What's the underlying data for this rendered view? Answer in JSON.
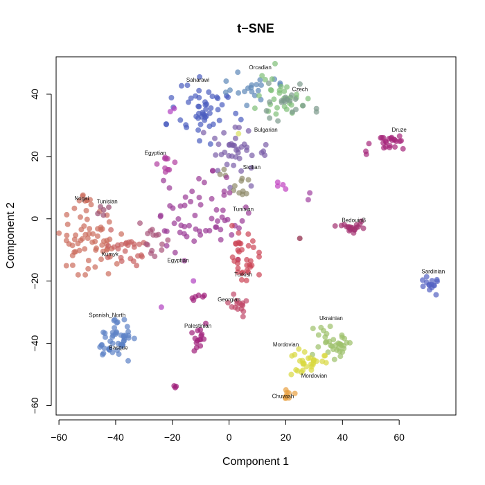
{
  "chart_data": {
    "type": "scatter",
    "title": "t−SNE",
    "xlabel": "Component 1",
    "ylabel": "Component 2",
    "xlim": [
      -61,
      80
    ],
    "ylim": [
      -63,
      52
    ],
    "xticks": [
      -60,
      -40,
      -20,
      0,
      20,
      40,
      60
    ],
    "yticks": [
      -60,
      -40,
      -20,
      0,
      20,
      40
    ],
    "xtick_labels": [
      "−60",
      "−40",
      "−20",
      "0",
      "20",
      "40",
      "60"
    ],
    "ytick_labels": [
      "−60",
      "−40",
      "−20",
      "0",
      "20",
      "40"
    ],
    "grid": false,
    "legend": "none",
    "clusters": [
      {
        "cx": -9,
        "cy": 35,
        "sx": 6,
        "sy": 5,
        "n": 50,
        "color": "#4a5cbf"
      },
      {
        "cx": 7,
        "cy": 42,
        "sx": 5,
        "sy": 3,
        "n": 20,
        "color": "#5d88b8"
      },
      {
        "cx": 18,
        "cy": 41,
        "sx": 5,
        "sy": 4,
        "n": 30,
        "color": "#7fbf78"
      },
      {
        "cx": 22,
        "cy": 38,
        "sx": 4,
        "sy": 3,
        "n": 20,
        "color": "#7c9a8c"
      },
      {
        "cx": 4,
        "cy": 21,
        "sx": 6,
        "sy": 5,
        "n": 40,
        "color": "#7b5ea8"
      },
      {
        "cx": 1,
        "cy": 12,
        "sx": 3,
        "sy": 3,
        "n": 12,
        "color": "#8e8a6a"
      },
      {
        "cx": 56,
        "cy": 24,
        "sx": 4,
        "sy": 1.5,
        "n": 25,
        "color": "#a5267a"
      },
      {
        "cx": -22,
        "cy": 18,
        "sx": 2,
        "sy": 1.5,
        "n": 10,
        "color": "#b03da0"
      },
      {
        "cx": -49,
        "cy": -7,
        "sx": 5,
        "sy": 5,
        "n": 60,
        "color": "#cc6c5c"
      },
      {
        "cx": -51,
        "cy": 5,
        "sx": 1.5,
        "sy": 1.5,
        "n": 8,
        "color": "#cc6c5c"
      },
      {
        "cx": -37,
        "cy": -10,
        "sx": 4,
        "sy": 3,
        "n": 25,
        "color": "#c76060"
      },
      {
        "cx": -28,
        "cy": -8,
        "sx": 3,
        "sy": 3,
        "n": 15,
        "color": "#a8557a"
      },
      {
        "cx": -44,
        "cy": 3,
        "sx": 1.5,
        "sy": 1.5,
        "n": 5,
        "color": "#9a4e70"
      },
      {
        "cx": -10,
        "cy": 0,
        "sx": 8,
        "sy": 7,
        "n": 60,
        "color": "#9a3a96"
      },
      {
        "cx": 4,
        "cy": -11,
        "sx": 3,
        "sy": 4,
        "n": 35,
        "color": "#cc4456"
      },
      {
        "cx": 4,
        "cy": -27,
        "sx": 2,
        "sy": 2,
        "n": 15,
        "color": "#c0486a"
      },
      {
        "cx": 44,
        "cy": -3,
        "sx": 3,
        "sy": 1,
        "n": 20,
        "color": "#a33070"
      },
      {
        "cx": 71,
        "cy": -20,
        "sx": 1.5,
        "sy": 2,
        "n": 15,
        "color": "#5361c2"
      },
      {
        "cx": -40,
        "cy": -39,
        "sx": 3,
        "sy": 3,
        "n": 50,
        "color": "#5d82c6"
      },
      {
        "cx": -11,
        "cy": -38,
        "sx": 1.5,
        "sy": 2,
        "n": 15,
        "color": "#a0207a"
      },
      {
        "cx": 36,
        "cy": -39,
        "sx": 3,
        "sy": 3,
        "n": 35,
        "color": "#9cc06a"
      },
      {
        "cx": 28,
        "cy": -46,
        "sx": 3,
        "sy": 2,
        "n": 30,
        "color": "#d8d840"
      },
      {
        "cx": 21,
        "cy": -56,
        "sx": 1,
        "sy": 1,
        "n": 8,
        "color": "#e8a040"
      },
      {
        "cx": -11,
        "cy": -25,
        "sx": 1.5,
        "sy": 1,
        "n": 6,
        "color": "#a0207a"
      },
      {
        "cx": -19,
        "cy": -54,
        "sx": 0.3,
        "sy": 0.8,
        "n": 3,
        "color": "#a0207a"
      },
      {
        "cx": 18,
        "cy": 11,
        "sx": 2,
        "sy": 1,
        "n": 4,
        "color": "#c040c0"
      },
      {
        "cx": 28,
        "cy": 7,
        "sx": 0.5,
        "sy": 1,
        "n": 2,
        "color": "#a040a0"
      },
      {
        "cx": 3,
        "cy": 28,
        "sx": 0.4,
        "sy": 0.4,
        "n": 1,
        "color": "#d8e060"
      },
      {
        "cx": 25,
        "cy": -6,
        "sx": 0.2,
        "sy": 0.2,
        "n": 1,
        "color": "#8a2040"
      },
      {
        "cx": -24,
        "cy": -28,
        "sx": 0.3,
        "sy": 0.3,
        "n": 1,
        "color": "#b040c0"
      },
      {
        "cx": -13,
        "cy": -20,
        "sx": 0.3,
        "sy": 0.3,
        "n": 1,
        "color": "#b040c0"
      },
      {
        "cx": -55,
        "cy": -15,
        "sx": 0.3,
        "sy": 0.3,
        "n": 1,
        "color": "#cc6c5c"
      },
      {
        "cx": -20,
        "cy": 35,
        "sx": 0.5,
        "sy": 0.3,
        "n": 2,
        "color": "#b040c0"
      }
    ],
    "labels": [
      {
        "text": "Orcadian",
        "x": 11,
        "y": 48
      },
      {
        "text": "Saharawi",
        "x": -11,
        "y": 44
      },
      {
        "text": "Czech",
        "x": 25,
        "y": 41
      },
      {
        "text": "Bulgarian",
        "x": 13,
        "y": 28
      },
      {
        "text": "Druze",
        "x": 60,
        "y": 28
      },
      {
        "text": "Egyptian",
        "x": -26,
        "y": 20.5
      },
      {
        "text": "Sicilian",
        "x": 8,
        "y": 16
      },
      {
        "text": "Nogai",
        "x": -52,
        "y": 6
      },
      {
        "text": "Tunisian",
        "x": -43,
        "y": 5
      },
      {
        "text": "Tunisian",
        "x": 5,
        "y": 2.5
      },
      {
        "text": "BedouinB",
        "x": 44,
        "y": -1
      },
      {
        "text": "Kumyk",
        "x": -42,
        "y": -12
      },
      {
        "text": "Egyptian",
        "x": -18,
        "y": -14
      },
      {
        "text": "Turkish",
        "x": 5,
        "y": -18.5
      },
      {
        "text": "Sardinian",
        "x": 72,
        "y": -17.5
      },
      {
        "text": "Georgian",
        "x": 0,
        "y": -26.5
      },
      {
        "text": "Spanish_North",
        "x": -43,
        "y": -31.5
      },
      {
        "text": "Ukrainian",
        "x": 36,
        "y": -32.5
      },
      {
        "text": "Palestinian",
        "x": -11,
        "y": -35
      },
      {
        "text": "Mordovian",
        "x": 20,
        "y": -41
      },
      {
        "text": "Basque",
        "x": -39,
        "y": -42
      },
      {
        "text": "Mordovian",
        "x": 30,
        "y": -51
      },
      {
        "text": "Chuvash",
        "x": 19,
        "y": -57.5
      }
    ]
  }
}
